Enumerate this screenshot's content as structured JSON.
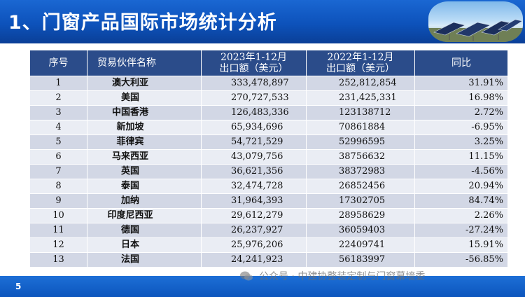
{
  "slide": {
    "title": "1、门窗产品国际市场统计分析",
    "page_number": "5",
    "watermark": "公众号 · 中建协整装定制与门窗幕墙委"
  },
  "table": {
    "headers": {
      "seq": "序号",
      "partner": "贸易伙伴名称",
      "y2023_line1": "2023年1-12月",
      "y2023_line2": "出口额（美元）",
      "y2022_line1": "2022年1-12月",
      "y2022_line2": "出口额（美元）",
      "yoy": "同比"
    },
    "rows": [
      {
        "seq": "1",
        "partner": "澳大利亚",
        "y2023": "333,478,897",
        "y2022": "252,812,854",
        "yoy": "31.91%"
      },
      {
        "seq": "2",
        "partner": "美国",
        "y2023": "270,727,533",
        "y2022": "231,425,331",
        "yoy": "16.98%"
      },
      {
        "seq": "3",
        "partner": "中国香港",
        "y2023": "126,483,336",
        "y2022": "123138712",
        "yoy": "2.72%"
      },
      {
        "seq": "4",
        "partner": "新加坡",
        "y2023": "65,934,696",
        "y2022": "70861884",
        "yoy": "-6.95%"
      },
      {
        "seq": "5",
        "partner": "菲律宾",
        "y2023": "54,721,529",
        "y2022": "52996595",
        "yoy": "3.25%"
      },
      {
        "seq": "6",
        "partner": "马来西亚",
        "y2023": "43,079,756",
        "y2022": "38756632",
        "yoy": "11.15%"
      },
      {
        "seq": "7",
        "partner": "英国",
        "y2023": "36,621,356",
        "y2022": "38372983",
        "yoy": "-4.56%"
      },
      {
        "seq": "8",
        "partner": "泰国",
        "y2023": "32,474,728",
        "y2022": "26852456",
        "yoy": "20.94%"
      },
      {
        "seq": "9",
        "partner": "加纳",
        "y2023": "31,964,393",
        "y2022": "17302705",
        "yoy": "84.74%"
      },
      {
        "seq": "10",
        "partner": "印度尼西亚",
        "y2023": "29,612,279",
        "y2022": "28958629",
        "yoy": "2.26%"
      },
      {
        "seq": "11",
        "partner": "德国",
        "y2023": "26,237,927",
        "y2022": "36059403",
        "yoy": "-27.24%"
      },
      {
        "seq": "12",
        "partner": "日本",
        "y2023": "25,976,206",
        "y2022": "22409741",
        "yoy": "15.91%"
      },
      {
        "seq": "13",
        "partner": "法国",
        "y2023": "24,241,923",
        "y2022": "56183997",
        "yoy": "-56.85%"
      }
    ]
  },
  "colors": {
    "title_bar": "#0d52bb",
    "header": "#2b4c8a",
    "row_odd": "#d2d7e5",
    "row_even": "#eaedf4"
  }
}
